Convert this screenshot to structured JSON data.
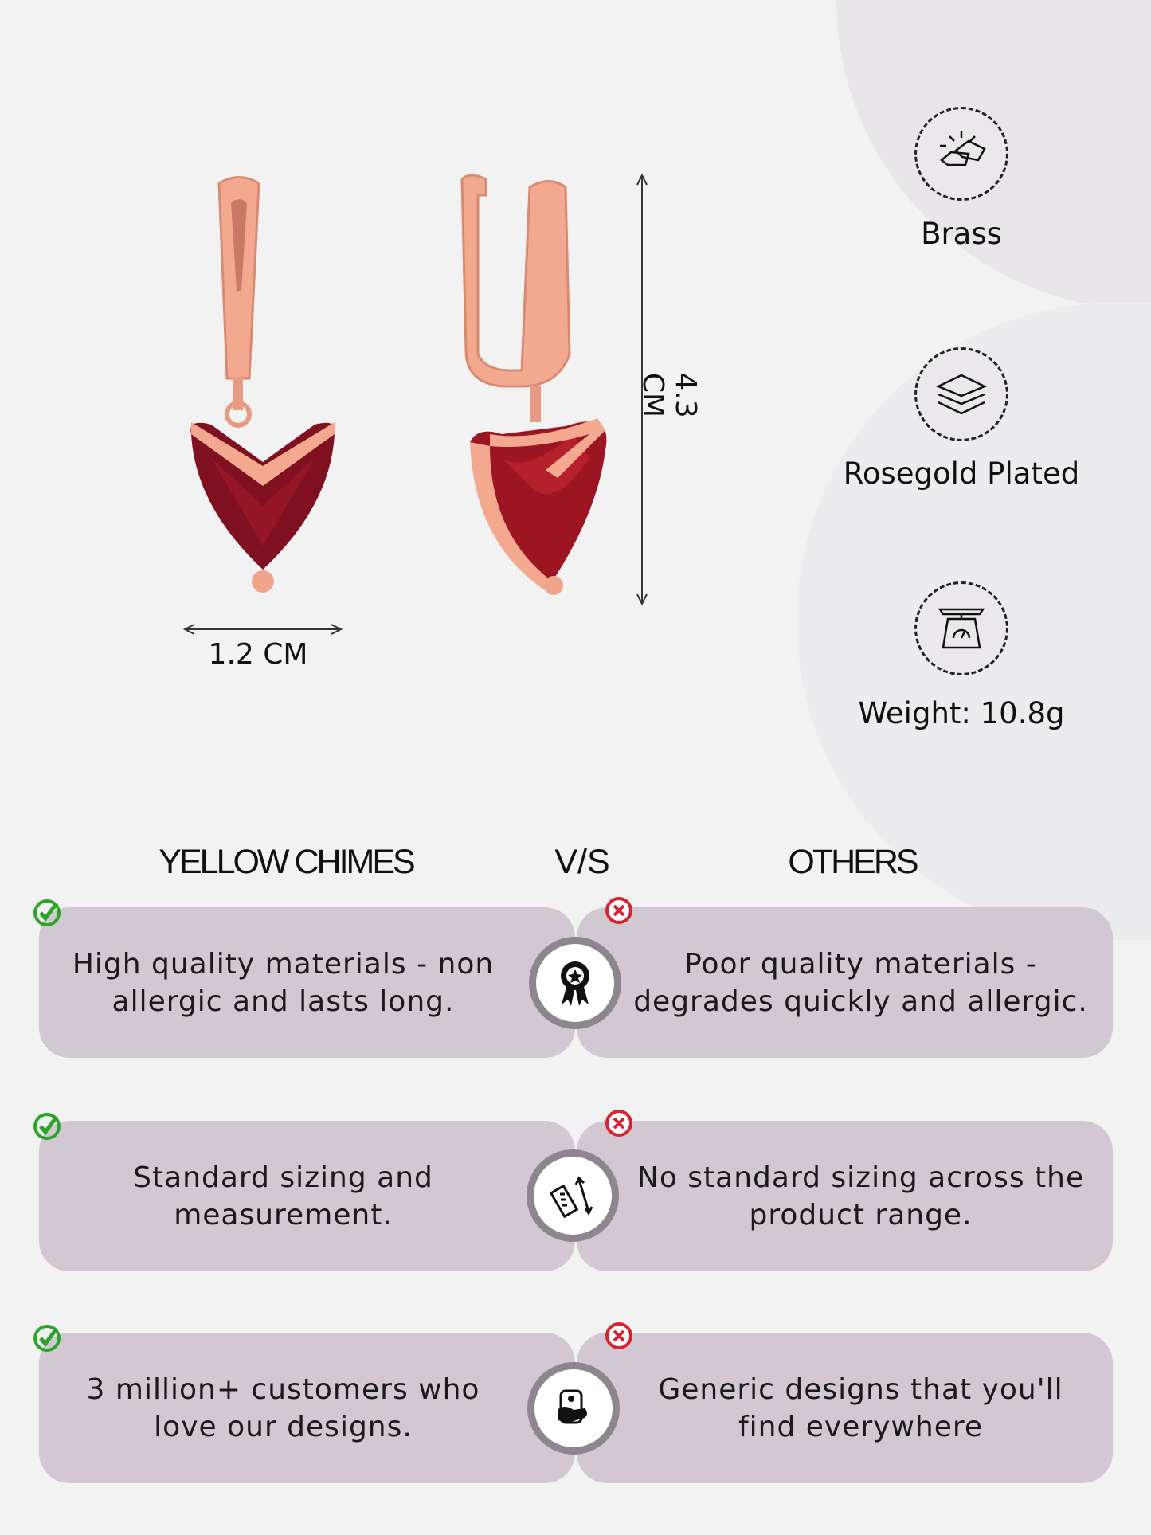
{
  "dimensions": {
    "width_label": "1.2 CM",
    "height_label": "4.3 CM"
  },
  "specs": [
    {
      "icon": "gold-bars-icon",
      "label": "Brass"
    },
    {
      "icon": "layers-icon",
      "label": "Rosegold Plated"
    },
    {
      "icon": "weighing-scale-icon",
      "label": "Weight: 10.8g"
    }
  ],
  "comparison": {
    "left_title": "YELLOW CHIMES",
    "vs_label": "V/S",
    "right_title": "OTHERS",
    "rows": [
      {
        "ours": "High quality materials - non allergic and lasts long.",
        "icon": "award-ribbon-icon",
        "others": "Poor quality materials - degrades quickly and allergic."
      },
      {
        "ours": "Standard sizing and measurement.",
        "icon": "ruler-icon",
        "others": "No standard sizing across the product range."
      },
      {
        "ours": "3 million+ customers who love our designs.",
        "icon": "customer-hand-icon",
        "others": "Generic designs that you'll find everywhere"
      }
    ]
  },
  "colors": {
    "card": "#d2c8d2",
    "badge_ring": "#8e868f",
    "check": "#2aa52a",
    "cross": "#d8232f",
    "rosegold": "#f0a48c",
    "garnet": "#8b1420"
  }
}
